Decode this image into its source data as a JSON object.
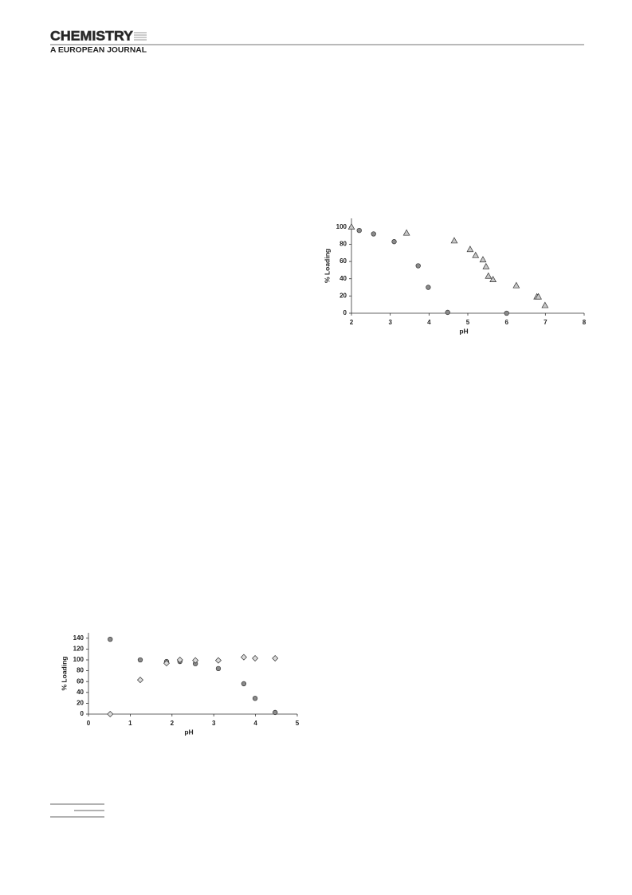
{
  "header": {
    "title": "CHEMISTRY",
    "subtitle": "A EUROPEAN JOURNAL"
  },
  "chart_data": [
    {
      "type": "scatter",
      "xlabel": "pH",
      "ylabel": "% Loading",
      "xlim": [
        2,
        8
      ],
      "xticks": [
        2,
        3,
        4,
        5,
        6,
        7,
        8
      ],
      "ylim": [
        0,
        110
      ],
      "yticks": [
        0,
        20,
        40,
        60,
        80,
        100
      ],
      "series": [
        {
          "color": "#8a8a8a",
          "marker": "circle",
          "x": [
            2.2,
            2.57,
            3.1,
            3.72,
            3.98,
            4.48,
            6.0
          ],
          "values": [
            96,
            92,
            83,
            55,
            30,
            1,
            0
          ]
        },
        {
          "color": "#c8c8c8",
          "marker": "triangle",
          "x": [
            2.0,
            3.42,
            4.65,
            5.06,
            5.2,
            5.39,
            5.47,
            5.53,
            5.65,
            6.25,
            6.78,
            6.82,
            6.99
          ],
          "values": [
            100,
            93,
            84,
            74,
            67,
            62,
            54,
            43,
            39,
            32,
            19,
            19,
            9
          ]
        }
      ]
    },
    {
      "type": "scatter",
      "xlabel": "pH",
      "ylabel": "% Loading",
      "xlim": [
        0,
        5
      ],
      "xticks": [
        0,
        1,
        2,
        3,
        4,
        5
      ],
      "ylim": [
        0,
        150
      ],
      "yticks": [
        0,
        20,
        40,
        60,
        80,
        100,
        120,
        140
      ],
      "series": [
        {
          "color": "#8a8a8a",
          "marker": "circle",
          "x": [
            0.52,
            1.24,
            1.87,
            2.19,
            2.56,
            3.11,
            3.72,
            3.99,
            4.47
          ],
          "values": [
            138,
            100,
            97,
            97,
            93,
            84,
            56,
            29,
            3
          ]
        },
        {
          "color": "#dcdcdc",
          "marker": "diamond",
          "x": [
            0.52,
            1.24,
            1.87,
            2.19,
            2.56,
            3.11,
            3.72,
            3.99,
            4.47
          ],
          "values": [
            0,
            63,
            94,
            100,
            99,
            99,
            105,
            103,
            103
          ]
        }
      ]
    }
  ]
}
